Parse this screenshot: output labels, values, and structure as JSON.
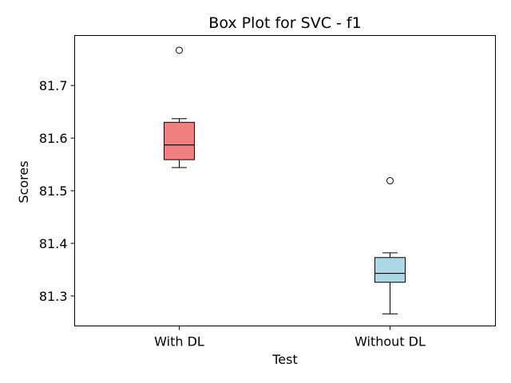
{
  "chart_data": {
    "type": "box",
    "title": "Box Plot for SVC - f1",
    "xlabel": "Test",
    "ylabel": "Scores",
    "ylim": [
      81.243,
      81.795
    ],
    "yticks": [
      81.3,
      81.4,
      81.5,
      81.6,
      81.7
    ],
    "grid": false,
    "categories": [
      "With DL",
      "Without DL"
    ],
    "boxes": [
      {
        "category": "With DL",
        "whisker_low": 81.544,
        "q1": 81.559,
        "median": 81.587,
        "q3": 81.63,
        "whisker_high": 81.637,
        "outliers": [
          81.767
        ],
        "color": "#f08080"
      },
      {
        "category": "Without DL",
        "whisker_low": 81.266,
        "q1": 81.326,
        "median": 81.343,
        "q3": 81.373,
        "whisker_high": 81.382,
        "outliers": [
          81.519
        ],
        "color": "#add8e6"
      }
    ]
  }
}
